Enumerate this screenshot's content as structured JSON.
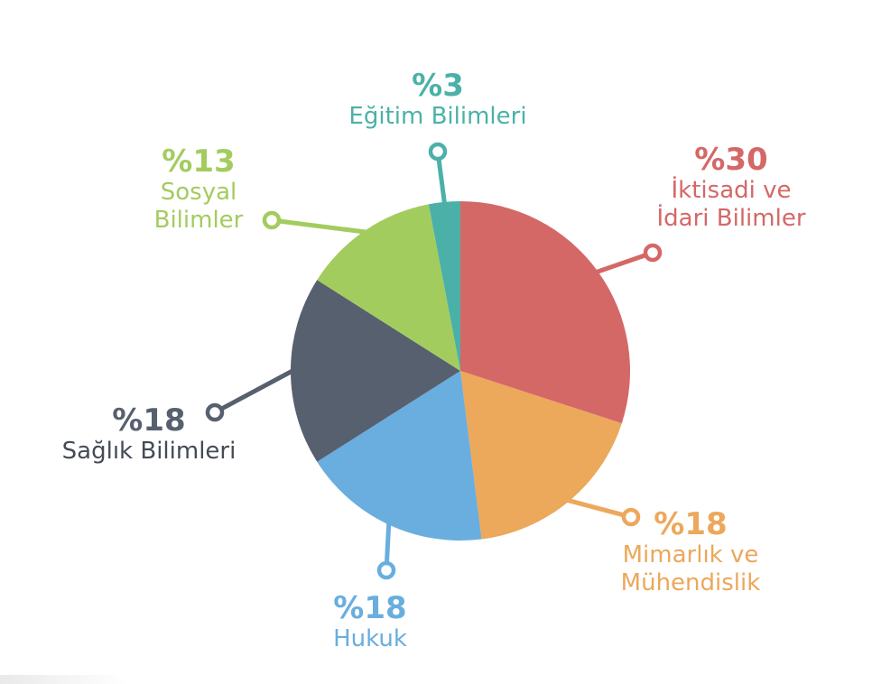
{
  "chart_data": {
    "type": "pie",
    "slices": [
      {
        "label": "İktisadi ve\nİdari Bilimler",
        "percent_label": "%30",
        "value": 30,
        "color": "#D46867"
      },
      {
        "label": "Mimarlık ve\nMühendislik",
        "percent_label": "%18",
        "value": 18,
        "color": "#ECA85B"
      },
      {
        "label": "Hukuk",
        "percent_label": "%18",
        "value": 18,
        "color": "#69AEDE"
      },
      {
        "label": "Sağlık Bilimleri",
        "percent_label": "%18",
        "value": 18,
        "color": "#57606E"
      },
      {
        "label": "Sosyal\nBilimler",
        "percent_label": "%13",
        "value": 13,
        "color": "#A3CC5E"
      },
      {
        "label": "Eğitim Bilimleri",
        "percent_label": "%3",
        "value": 3,
        "color": "#4BB1A8"
      }
    ],
    "start_angle_deg": 0,
    "direction": "clockwise",
    "legend": "none"
  }
}
